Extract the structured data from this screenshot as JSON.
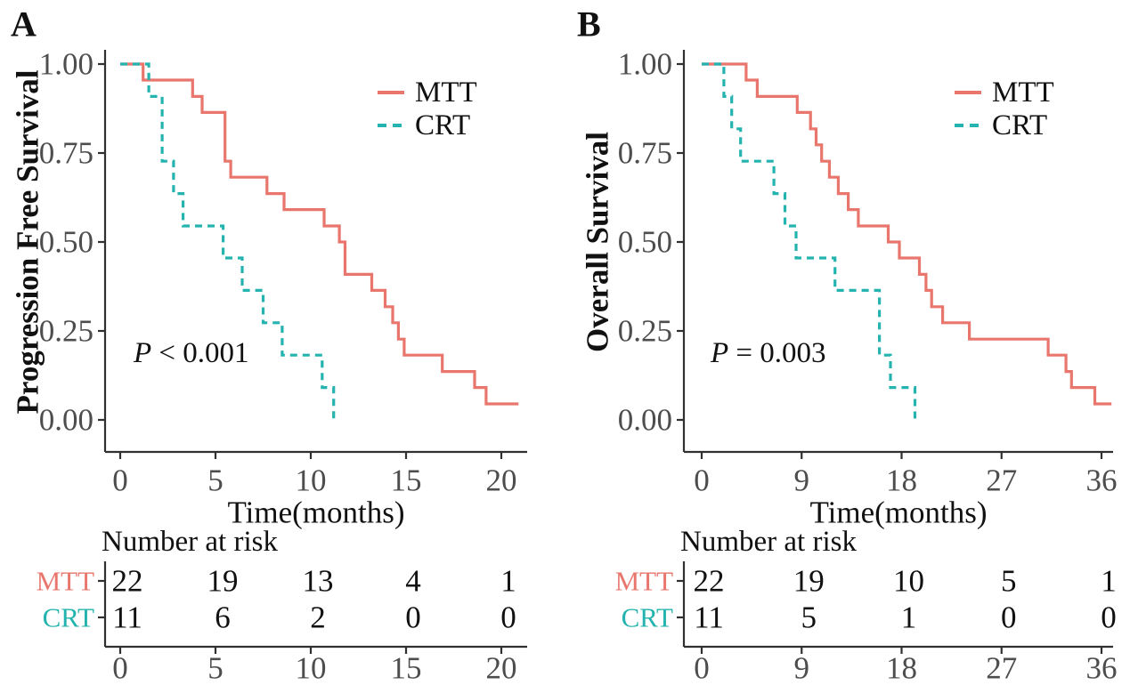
{
  "figure": {
    "background": "#FFFFFF",
    "colors": {
      "mtt": "#E8766D",
      "crt": "#24B3AE",
      "tick_text": "#4D4D4D",
      "axis_line": "#303030",
      "text": "#111111"
    }
  },
  "chart_data": [
    {
      "type": "line",
      "subtype": "kaplan-meier-step",
      "panel_label": "A",
      "ylabel": "Progression Free Survival",
      "xlabel": "Time(months)",
      "pvalue": "P < 0.001",
      "legend_position": "top-right",
      "grid": false,
      "xlim": [
        0,
        21
      ],
      "ylim": [
        0,
        1
      ],
      "xticks": [
        0,
        5,
        10,
        15,
        20
      ],
      "ytick_labels": [
        "1.00",
        "0.75",
        "0.50",
        "0.25",
        "0.00"
      ],
      "ytick_values": [
        1.0,
        0.75,
        0.5,
        0.25,
        0.0
      ],
      "series": [
        {
          "name": "MTT",
          "style": "solid",
          "color_key": "mtt",
          "end_time": 20.9,
          "steps": [
            [
              0,
              1.0
            ],
            [
              1.2,
              0.955
            ],
            [
              3.8,
              0.909
            ],
            [
              4.3,
              0.864
            ],
            [
              5.5,
              0.727
            ],
            [
              5.8,
              0.682
            ],
            [
              7.7,
              0.636
            ],
            [
              8.6,
              0.591
            ],
            [
              10.7,
              0.545
            ],
            [
              11.5,
              0.5
            ],
            [
              11.8,
              0.409
            ],
            [
              13.2,
              0.364
            ],
            [
              13.9,
              0.318
            ],
            [
              14.3,
              0.273
            ],
            [
              14.6,
              0.227
            ],
            [
              14.9,
              0.182
            ],
            [
              16.9,
              0.136
            ],
            [
              18.6,
              0.091
            ],
            [
              19.2,
              0.045
            ]
          ]
        },
        {
          "name": "CRT",
          "style": "dashed",
          "color_key": "crt",
          "end_time": null,
          "steps": [
            [
              0,
              1.0
            ],
            [
              1.5,
              0.909
            ],
            [
              2.2,
              0.727
            ],
            [
              2.8,
              0.636
            ],
            [
              3.3,
              0.545
            ],
            [
              5.4,
              0.455
            ],
            [
              6.4,
              0.364
            ],
            [
              7.5,
              0.273
            ],
            [
              8.5,
              0.182
            ],
            [
              10.6,
              0.091
            ],
            [
              11.2,
              0.0
            ]
          ]
        }
      ],
      "risk_table": {
        "title": "Number at risk",
        "times": [
          0,
          5,
          10,
          15,
          20
        ],
        "rows": [
          {
            "name": "MTT",
            "color_key": "mtt",
            "counts": [
              "22",
              "19",
              "13",
              "4",
              "1"
            ]
          },
          {
            "name": "CRT",
            "color_key": "crt",
            "counts": [
              "11",
              "6",
              "2",
              "0",
              "0"
            ]
          }
        ]
      }
    },
    {
      "type": "line",
      "subtype": "kaplan-meier-step",
      "panel_label": "B",
      "ylabel": "Overall Survival",
      "xlabel": "Time(months)",
      "pvalue": "P = 0.003",
      "legend_position": "top-right",
      "grid": false,
      "xlim": [
        0,
        37
      ],
      "ylim": [
        0,
        1
      ],
      "xticks": [
        0,
        9,
        18,
        27,
        36
      ],
      "ytick_labels": [
        "1.00",
        "0.75",
        "0.50",
        "0.25",
        "0.00"
      ],
      "ytick_values": [
        1.0,
        0.75,
        0.5,
        0.25,
        0.0
      ],
      "series": [
        {
          "name": "MTT",
          "style": "solid",
          "color_key": "mtt",
          "end_time": 36.9,
          "steps": [
            [
              0,
              1.0
            ],
            [
              4.0,
              0.955
            ],
            [
              5.0,
              0.909
            ],
            [
              8.6,
              0.864
            ],
            [
              9.8,
              0.818
            ],
            [
              10.3,
              0.773
            ],
            [
              10.8,
              0.727
            ],
            [
              11.5,
              0.682
            ],
            [
              12.3,
              0.636
            ],
            [
              13.2,
              0.591
            ],
            [
              14.1,
              0.545
            ],
            [
              16.8,
              0.5
            ],
            [
              17.8,
              0.455
            ],
            [
              19.6,
              0.409
            ],
            [
              20.2,
              0.364
            ],
            [
              20.7,
              0.318
            ],
            [
              21.7,
              0.273
            ],
            [
              24.1,
              0.227
            ],
            [
              31.2,
              0.182
            ],
            [
              32.8,
              0.136
            ],
            [
              33.3,
              0.091
            ],
            [
              35.4,
              0.045
            ]
          ]
        },
        {
          "name": "CRT",
          "style": "dashed",
          "color_key": "crt",
          "end_time": null,
          "steps": [
            [
              0,
              1.0
            ],
            [
              2.0,
              0.909
            ],
            [
              2.7,
              0.818
            ],
            [
              3.5,
              0.727
            ],
            [
              6.5,
              0.636
            ],
            [
              7.5,
              0.545
            ],
            [
              8.5,
              0.455
            ],
            [
              12.0,
              0.364
            ],
            [
              16.0,
              0.182
            ],
            [
              17.0,
              0.091
            ],
            [
              19.2,
              0.0
            ]
          ]
        }
      ],
      "risk_table": {
        "title": "Number at risk",
        "times": [
          0,
          9,
          18,
          27,
          36
        ],
        "rows": [
          {
            "name": "MTT",
            "color_key": "mtt",
            "counts": [
              "22",
              "19",
              "10",
              "5",
              "1"
            ]
          },
          {
            "name": "CRT",
            "color_key": "crt",
            "counts": [
              "11",
              "5",
              "1",
              "0",
              "0"
            ]
          }
        ]
      }
    }
  ]
}
